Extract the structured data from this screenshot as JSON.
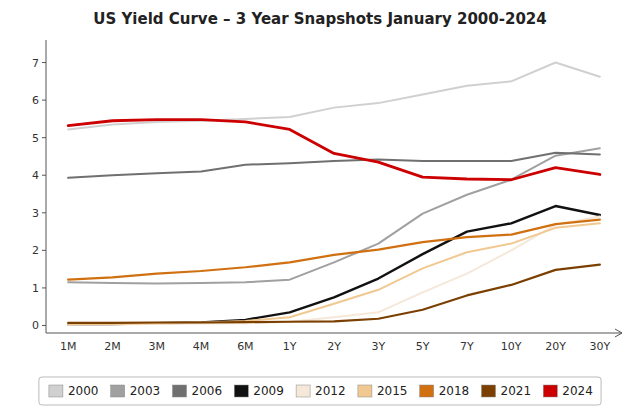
{
  "chart_data": {
    "type": "line",
    "title": "US Yield Curve – 3 Year Snapshots January 2000-2024",
    "categories": [
      "1M",
      "2M",
      "3M",
      "4M",
      "6M",
      "1Y",
      "2Y",
      "3Y",
      "5Y",
      "7Y",
      "10Y",
      "20Y",
      "30Y"
    ],
    "series": [
      {
        "name": "2000",
        "color": "#d0d0d0",
        "values": [
          5.22,
          5.35,
          5.42,
          5.45,
          5.5,
          5.55,
          5.8,
          5.92,
          6.15,
          6.38,
          6.5,
          7.0,
          6.62
        ]
      },
      {
        "name": "2003",
        "color": "#a0a0a0",
        "values": [
          1.15,
          1.13,
          1.12,
          1.13,
          1.15,
          1.22,
          1.68,
          2.18,
          2.98,
          3.48,
          3.88,
          4.52,
          4.72
        ]
      },
      {
        "name": "2006",
        "color": "#707070",
        "values": [
          3.93,
          4.0,
          4.05,
          4.1,
          4.28,
          4.32,
          4.38,
          4.42,
          4.38,
          4.38,
          4.38,
          4.6,
          4.55
        ]
      },
      {
        "name": "2009",
        "color": "#111111",
        "values": [
          0.03,
          0.04,
          0.06,
          0.08,
          0.15,
          0.35,
          0.75,
          1.25,
          1.9,
          2.5,
          2.72,
          3.18,
          2.94
        ]
      },
      {
        "name": "2012",
        "color": "#f5e8d8",
        "values": [
          0.02,
          0.03,
          0.04,
          0.05,
          0.06,
          0.1,
          0.22,
          0.35,
          0.88,
          1.38,
          2.0,
          2.68,
          2.9
        ]
      },
      {
        "name": "2015",
        "color": "#f0c890",
        "values": [
          0.04,
          0.04,
          0.06,
          0.08,
          0.12,
          0.22,
          0.58,
          0.95,
          1.52,
          1.95,
          2.18,
          2.6,
          2.72
        ]
      },
      {
        "name": "2018",
        "color": "#d07010",
        "values": [
          1.22,
          1.28,
          1.38,
          1.45,
          1.55,
          1.68,
          1.88,
          2.02,
          2.22,
          2.35,
          2.42,
          2.7,
          2.82
        ]
      },
      {
        "name": "2021",
        "color": "#7B3F00",
        "values": [
          0.07,
          0.07,
          0.08,
          0.08,
          0.09,
          0.1,
          0.11,
          0.18,
          0.42,
          0.8,
          1.08,
          1.48,
          1.62
        ]
      },
      {
        "name": "2024",
        "color": "#cc0000",
        "values": [
          5.32,
          5.45,
          5.48,
          5.48,
          5.42,
          5.22,
          4.58,
          4.35,
          3.95,
          3.9,
          3.88,
          4.2,
          4.02
        ]
      }
    ],
    "ylim": [
      -0.2,
      7.6
    ],
    "yticks": [
      0,
      1,
      2,
      3,
      4,
      5,
      6,
      7
    ],
    "grid": false,
    "legend": "bottom"
  }
}
